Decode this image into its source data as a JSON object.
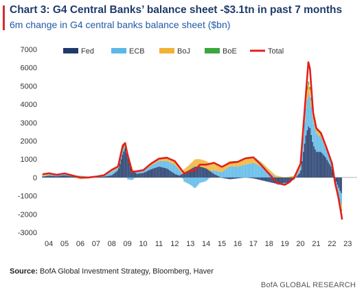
{
  "header": {
    "title": "Chart 3: G4 Central Banks’ balance sheet -$3.1tn in past 7 months",
    "subtitle": "6m change in G4 central banks balance sheet ($bn)"
  },
  "footer": {
    "source_label": "Source:",
    "source_text": "BofA Global Investment Strategy, Bloomberg, Haver",
    "brand": "BofA GLOBAL RESEARCH"
  },
  "colors": {
    "fed": "#1f3a6b",
    "ecb": "#5bb8e8",
    "boj": "#f2b233",
    "boe": "#3aa83a",
    "total": "#e0201b",
    "accent": "#d62a2a"
  },
  "chart_data": {
    "type": "area",
    "title": "",
    "xlabel": "",
    "ylabel": "",
    "ylim": [
      -3000,
      7000
    ],
    "yticks": [
      7000,
      6000,
      5000,
      4000,
      3000,
      2000,
      1000,
      0,
      -1000,
      -2000,
      -3000
    ],
    "xtick_labels": [
      "04",
      "05",
      "06",
      "07",
      "08",
      "09",
      "10",
      "11",
      "12",
      "13",
      "14",
      "15",
      "16",
      "17",
      "18",
      "19",
      "20",
      "21",
      "22",
      "23"
    ],
    "legend": [
      "Fed",
      "ECB",
      "BoJ",
      "BoE",
      "Total"
    ],
    "legend_position": "top",
    "x": [
      2003.6,
      2004.0,
      2004.5,
      2005.0,
      2005.5,
      2006.0,
      2006.5,
      2007.0,
      2007.5,
      2008.0,
      2008.4,
      2008.7,
      2008.85,
      2009.0,
      2009.3,
      2009.6,
      2010.0,
      2010.5,
      2011.0,
      2011.5,
      2012.0,
      2012.3,
      2012.6,
      2013.0,
      2013.3,
      2013.6,
      2014.0,
      2014.5,
      2015.0,
      2015.5,
      2016.0,
      2016.5,
      2017.0,
      2017.5,
      2018.0,
      2018.5,
      2019.0,
      2019.3,
      2019.6,
      2020.0,
      2020.2,
      2020.35,
      2020.5,
      2020.6,
      2020.8,
      2021.0,
      2021.3,
      2021.6,
      2022.0,
      2022.2,
      2022.4,
      2022.55,
      2022.65
    ],
    "series": [
      {
        "name": "Fed",
        "values": [
          50,
          100,
          80,
          120,
          60,
          40,
          30,
          20,
          50,
          120,
          400,
          1300,
          1600,
          1200,
          400,
          200,
          250,
          450,
          600,
          500,
          200,
          100,
          250,
          450,
          600,
          600,
          500,
          200,
          -20,
          -100,
          -50,
          0,
          -50,
          -150,
          -250,
          -350,
          -300,
          -250,
          -100,
          300,
          1500,
          2300,
          2800,
          2700,
          1800,
          1400,
          1400,
          1100,
          500,
          -100,
          -500,
          -800,
          -900
        ]
      },
      {
        "name": "ECB",
        "values": [
          30,
          50,
          40,
          50,
          30,
          60,
          20,
          30,
          50,
          200,
          100,
          200,
          100,
          -100,
          -150,
          100,
          100,
          200,
          300,
          400,
          500,
          300,
          -200,
          -400,
          -600,
          -300,
          -200,
          200,
          300,
          600,
          600,
          700,
          800,
          600,
          300,
          -50,
          -100,
          -50,
          0,
          200,
          900,
          1500,
          1800,
          1700,
          1300,
          1000,
          800,
          500,
          200,
          -200,
          -400,
          -700,
          -600
        ]
      },
      {
        "name": "BoJ",
        "values": [
          100,
          80,
          30,
          50,
          20,
          -100,
          -50,
          0,
          20,
          50,
          50,
          50,
          30,
          50,
          60,
          40,
          50,
          60,
          100,
          150,
          150,
          150,
          200,
          300,
          400,
          400,
          400,
          400,
          300,
          300,
          250,
          300,
          300,
          200,
          150,
          100,
          0,
          50,
          100,
          200,
          400,
          600,
          500,
          400,
          300,
          200,
          150,
          100,
          50,
          0,
          -100,
          -200,
          -250
        ]
      },
      {
        "name": "BoE",
        "values": [
          0,
          0,
          0,
          0,
          0,
          0,
          0,
          0,
          0,
          50,
          50,
          200,
          150,
          100,
          0,
          0,
          0,
          50,
          30,
          30,
          50,
          20,
          -20,
          0,
          0,
          0,
          0,
          0,
          0,
          0,
          50,
          50,
          50,
          30,
          0,
          0,
          0,
          0,
          0,
          50,
          150,
          250,
          200,
          150,
          150,
          100,
          80,
          50,
          20,
          0,
          -50,
          -100,
          -150
        ]
      },
      {
        "name": "Total",
        "values": [
          180,
          230,
          150,
          220,
          110,
          0,
          0,
          50,
          120,
          420,
          600,
          1750,
          1880,
          1250,
          310,
          340,
          400,
          760,
          1030,
          1080,
          900,
          570,
          230,
          350,
          400,
          700,
          700,
          800,
          580,
          800,
          850,
          1050,
          1100,
          680,
          200,
          -300,
          -400,
          -250,
          0,
          750,
          2950,
          4650,
          6300,
          5950,
          3550,
          2700,
          2430,
          1750,
          770,
          -300,
          -1050,
          -1800,
          -2300
        ]
      }
    ]
  }
}
